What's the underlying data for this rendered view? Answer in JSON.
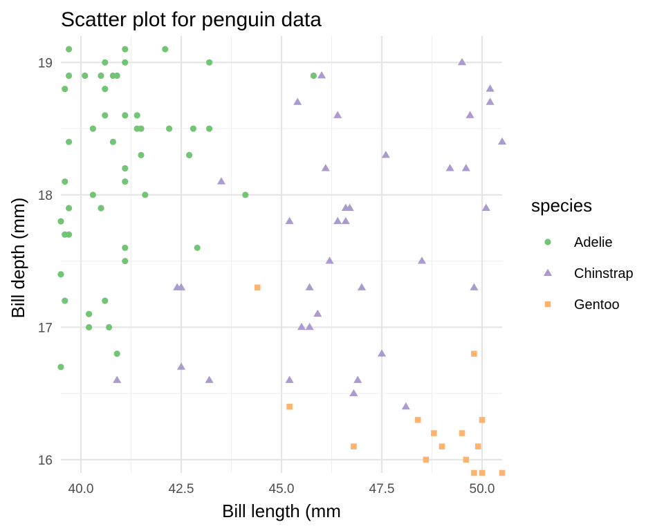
{
  "chart_data": {
    "type": "scatter",
    "title": "Scatter plot for penguin data",
    "xlabel": "Bill length (mm",
    "ylabel": "Bill depth (mm)",
    "xlim": [
      39.5,
      50.5
    ],
    "ylim": [
      15.9,
      19.2
    ],
    "x_ticks": [
      {
        "value": 40.0,
        "label": "40.0"
      },
      {
        "value": 42.5,
        "label": "42.5"
      },
      {
        "value": 45.0,
        "label": "45.0"
      },
      {
        "value": 47.5,
        "label": "47.5"
      },
      {
        "value": 50.0,
        "label": "50.0"
      }
    ],
    "y_ticks": [
      {
        "value": 16,
        "label": "16"
      },
      {
        "value": 17,
        "label": "17"
      },
      {
        "value": 18,
        "label": "18"
      },
      {
        "value": 19,
        "label": "19"
      }
    ],
    "grid": true,
    "legend": {
      "title": "species",
      "position": "right"
    },
    "series": [
      {
        "name": "Adelie",
        "color": "#74c476",
        "marker": "circle",
        "points": [
          [
            39.7,
            19.1
          ],
          [
            41.1,
            19.1
          ],
          [
            42.1,
            19.1
          ],
          [
            41.1,
            19.0
          ],
          [
            40.6,
            19.0
          ],
          [
            43.2,
            19.0
          ],
          [
            39.7,
            18.9
          ],
          [
            40.1,
            18.9
          ],
          [
            40.5,
            18.9
          ],
          [
            40.8,
            18.9
          ],
          [
            40.9,
            18.9
          ],
          [
            45.8,
            18.9
          ],
          [
            39.6,
            18.8
          ],
          [
            40.6,
            18.8
          ],
          [
            40.6,
            18.6
          ],
          [
            41.1,
            18.6
          ],
          [
            41.4,
            18.6
          ],
          [
            40.3,
            18.5
          ],
          [
            41.4,
            18.5
          ],
          [
            41.5,
            18.5
          ],
          [
            42.2,
            18.5
          ],
          [
            42.8,
            18.5
          ],
          [
            43.2,
            18.5
          ],
          [
            39.7,
            18.4
          ],
          [
            40.8,
            18.4
          ],
          [
            41.5,
            18.3
          ],
          [
            42.7,
            18.3
          ],
          [
            41.1,
            18.2
          ],
          [
            39.6,
            18.1
          ],
          [
            41.1,
            18.1
          ],
          [
            40.3,
            18.0
          ],
          [
            41.6,
            18.0
          ],
          [
            44.1,
            18.0
          ],
          [
            39.7,
            17.9
          ],
          [
            40.5,
            17.9
          ],
          [
            39.5,
            17.8
          ],
          [
            39.6,
            17.7
          ],
          [
            39.7,
            17.7
          ],
          [
            41.1,
            17.6
          ],
          [
            42.9,
            17.6
          ],
          [
            41.1,
            17.5
          ],
          [
            39.5,
            17.4
          ],
          [
            39.6,
            17.2
          ],
          [
            40.6,
            17.2
          ],
          [
            40.2,
            17.1
          ],
          [
            40.2,
            17.0
          ],
          [
            40.7,
            17.0
          ],
          [
            40.9,
            16.8
          ],
          [
            39.5,
            16.7
          ]
        ]
      },
      {
        "name": "Chinstrap",
        "color": "#ab9bcf",
        "marker": "triangle",
        "points": [
          [
            49.5,
            19.0
          ],
          [
            46.0,
            18.9
          ],
          [
            50.2,
            18.8
          ],
          [
            45.4,
            18.7
          ],
          [
            50.2,
            18.7
          ],
          [
            46.4,
            18.6
          ],
          [
            49.7,
            18.6
          ],
          [
            50.5,
            18.4
          ],
          [
            47.6,
            18.3
          ],
          [
            46.1,
            18.2
          ],
          [
            49.2,
            18.2
          ],
          [
            49.6,
            18.2
          ],
          [
            43.5,
            18.1
          ],
          [
            46.6,
            17.9
          ],
          [
            46.7,
            17.9
          ],
          [
            50.1,
            17.9
          ],
          [
            45.2,
            17.8
          ],
          [
            46.4,
            17.8
          ],
          [
            46.6,
            17.8
          ],
          [
            46.2,
            17.5
          ],
          [
            48.5,
            17.5
          ],
          [
            42.4,
            17.3
          ],
          [
            42.5,
            17.3
          ],
          [
            45.7,
            17.3
          ],
          [
            47.0,
            17.3
          ],
          [
            49.8,
            17.3
          ],
          [
            45.9,
            17.1
          ],
          [
            45.5,
            17.0
          ],
          [
            45.7,
            17.0
          ],
          [
            47.5,
            16.8
          ],
          [
            42.5,
            16.7
          ],
          [
            40.9,
            16.6
          ],
          [
            43.2,
            16.6
          ],
          [
            45.2,
            16.6
          ],
          [
            46.9,
            16.6
          ],
          [
            46.8,
            16.5
          ],
          [
            48.1,
            16.4
          ]
        ]
      },
      {
        "name": "Gentoo",
        "color": "#fdb46f",
        "marker": "square",
        "points": [
          [
            44.4,
            17.3
          ],
          [
            49.8,
            16.8
          ],
          [
            45.2,
            16.4
          ],
          [
            48.4,
            16.3
          ],
          [
            50.0,
            16.3
          ],
          [
            48.8,
            16.2
          ],
          [
            49.5,
            16.2
          ],
          [
            46.8,
            16.1
          ],
          [
            49.0,
            16.1
          ],
          [
            49.9,
            16.1
          ],
          [
            48.6,
            16.0
          ],
          [
            49.6,
            16.0
          ],
          [
            49.8,
            15.9
          ],
          [
            50.0,
            15.9
          ],
          [
            50.5,
            15.9
          ]
        ]
      }
    ]
  }
}
